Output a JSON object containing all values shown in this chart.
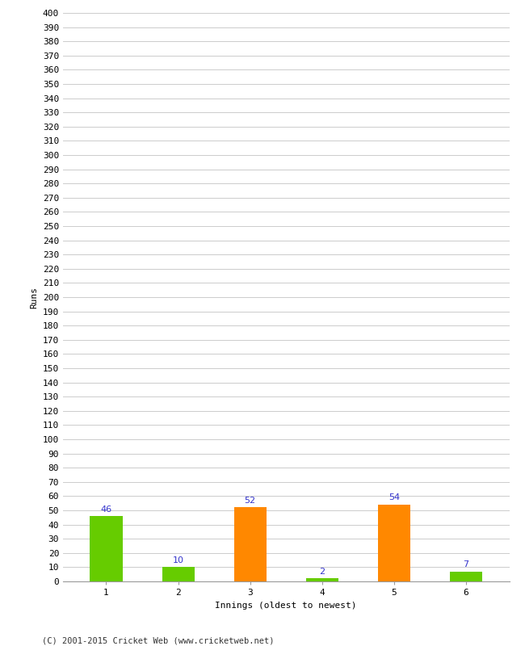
{
  "categories": [
    1,
    2,
    3,
    4,
    5,
    6
  ],
  "values": [
    46,
    10,
    52,
    2,
    54,
    7
  ],
  "bar_colors": [
    "#66cc00",
    "#66cc00",
    "#ff8800",
    "#66cc00",
    "#ff8800",
    "#66cc00"
  ],
  "title": "",
  "xlabel": "Innings (oldest to newest)",
  "ylabel": "Runs",
  "ylim": [
    0,
    400
  ],
  "ytick_step": 10,
  "background_color": "#ffffff",
  "grid_color": "#cccccc",
  "label_color": "#3333cc",
  "footer": "(C) 2001-2015 Cricket Web (www.cricketweb.net)",
  "bar_width": 0.45
}
